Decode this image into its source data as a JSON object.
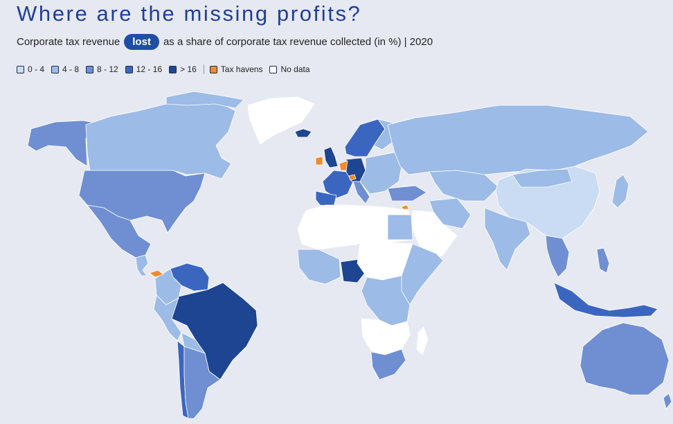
{
  "title": "Where are the missing profits?",
  "subtitle": {
    "before": "Corporate tax revenue",
    "highlight": "lost",
    "after": "as a share of corporate tax revenue collected (in %) | 2020"
  },
  "legend": [
    {
      "label": "0 - 4",
      "color": "#c9dcf3"
    },
    {
      "label": "4 - 8",
      "color": "#9cbbe6"
    },
    {
      "label": "8 - 12",
      "color": "#6f8fd2"
    },
    {
      "label": "12 - 16",
      "color": "#3b66c0"
    },
    {
      "label": "> 16",
      "color": "#1e4592"
    },
    {
      "label": "Tax havens",
      "color": "#f08a2c"
    },
    {
      "label": "No data",
      "color": "#ffffff"
    }
  ],
  "colors": {
    "background": "#e6e9f2",
    "title": "#1f3f98",
    "border": "#ffffff"
  }
}
